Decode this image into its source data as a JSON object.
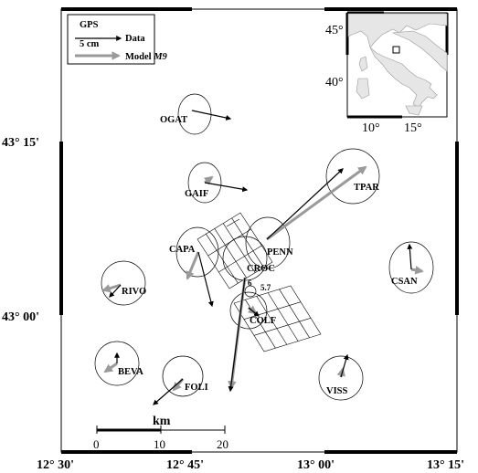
{
  "legend": {
    "gps_label": "GPS",
    "data_scale": "5 cm",
    "data_label": "Data",
    "model_label": "Model",
    "model_name": "M9"
  },
  "axes": {
    "lat_top": "43° 15'",
    "lat_bottom": "43° 00'",
    "lon_labels": [
      "12° 30'",
      "12° 45'",
      "13° 00'",
      "13° 15'"
    ]
  },
  "inset": {
    "lat_labels": [
      "45°",
      "40°"
    ],
    "lon_labels": [
      "10°",
      "15°"
    ]
  },
  "scalebar": {
    "unit": "km",
    "ticks": [
      "0",
      "10",
      "20"
    ]
  },
  "stations": [
    {
      "name": "OGAT"
    },
    {
      "name": "GAIF"
    },
    {
      "name": "TPAR"
    },
    {
      "name": "CAPA"
    },
    {
      "name": "PENN"
    },
    {
      "name": "CROC"
    },
    {
      "name": "CSAN"
    },
    {
      "name": "RIVO"
    },
    {
      "name": "COLF"
    },
    {
      "name": "BEVA"
    },
    {
      "name": "FOLI"
    },
    {
      "name": "VISS"
    }
  ],
  "fault_labels": [
    "6",
    "5.7"
  ],
  "colors": {
    "data_arrow": "#000000",
    "model_arrow": "#9a9a9a",
    "frame": "#000000"
  }
}
